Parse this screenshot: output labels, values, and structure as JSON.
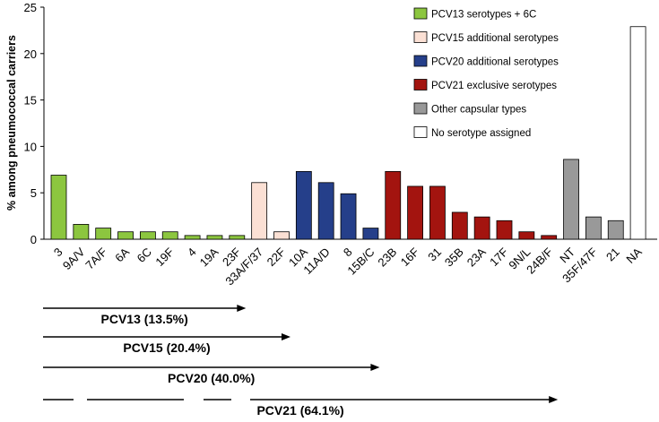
{
  "chart_data": {
    "type": "bar",
    "ylabel": "% among pneumococcal carriers",
    "ylim": [
      0,
      25
    ],
    "yticks": [
      0,
      5,
      10,
      15,
      20,
      25
    ],
    "categories": [
      {
        "label": "3",
        "value": 6.9,
        "group": "pcv13"
      },
      {
        "label": "9A/V",
        "value": 1.6,
        "group": "pcv13"
      },
      {
        "label": "7A/F",
        "value": 1.2,
        "group": "pcv13"
      },
      {
        "label": "6A",
        "value": 0.8,
        "group": "pcv13"
      },
      {
        "label": "6C",
        "value": 0.8,
        "group": "pcv13"
      },
      {
        "label": "19F",
        "value": 0.8,
        "group": "pcv13"
      },
      {
        "label": "4",
        "value": 0.4,
        "group": "pcv13"
      },
      {
        "label": "19A",
        "value": 0.4,
        "group": "pcv13"
      },
      {
        "label": "23F",
        "value": 0.4,
        "group": "pcv13"
      },
      {
        "label": "33A/F/37",
        "value": 6.1,
        "group": "pcv15"
      },
      {
        "label": "22F",
        "value": 0.8,
        "group": "pcv15"
      },
      {
        "label": "10A",
        "value": 7.3,
        "group": "pcv20"
      },
      {
        "label": "11A/D",
        "value": 6.1,
        "group": "pcv20"
      },
      {
        "label": "8",
        "value": 4.9,
        "group": "pcv20"
      },
      {
        "label": "15B/C",
        "value": 1.2,
        "group": "pcv20"
      },
      {
        "label": "23B",
        "value": 7.3,
        "group": "pcv21"
      },
      {
        "label": "16F",
        "value": 5.7,
        "group": "pcv21"
      },
      {
        "label": "31",
        "value": 5.7,
        "group": "pcv21"
      },
      {
        "label": "35B",
        "value": 2.9,
        "group": "pcv21"
      },
      {
        "label": "23A",
        "value": 2.4,
        "group": "pcv21"
      },
      {
        "label": "17F",
        "value": 2.0,
        "group": "pcv21"
      },
      {
        "label": "9N/L",
        "value": 0.8,
        "group": "pcv21"
      },
      {
        "label": "24B/F",
        "value": 0.4,
        "group": "pcv21"
      },
      {
        "label": "NT",
        "value": 8.6,
        "group": "other"
      },
      {
        "label": "35F/47F",
        "value": 2.4,
        "group": "other"
      },
      {
        "label": "21",
        "value": 2.0,
        "group": "other"
      },
      {
        "label": "NA",
        "value": 22.9,
        "group": "none"
      }
    ],
    "legend": [
      {
        "key": "pcv13",
        "label": "PCV13 serotypes + 6C",
        "color": "#8cc63f"
      },
      {
        "key": "pcv15",
        "label": "PCV15 additional serotypes",
        "color": "#fbe0d4"
      },
      {
        "key": "pcv20",
        "label": "PCV20 additional serotypes",
        "color": "#253f8a"
      },
      {
        "key": "pcv21",
        "label": "PCV21 exclusive serotypes",
        "color": "#a3140f"
      },
      {
        "key": "other",
        "label": "Other capsular types",
        "color": "#999999"
      },
      {
        "key": "none",
        "label": "No serotype assigned",
        "color": "#ffffff"
      }
    ],
    "vaccines": [
      {
        "label": "PCV13 (13.5%)",
        "start_index": 0,
        "end_index": 8
      },
      {
        "label": "PCV15 (20.4%)",
        "start_index": 0,
        "end_index": 10
      },
      {
        "label": "PCV20 (40.0%)",
        "start_index": 0,
        "end_index": 14
      },
      {
        "label": "PCV21 (64.1%)",
        "start_index": 0,
        "end_index": 22
      }
    ]
  }
}
